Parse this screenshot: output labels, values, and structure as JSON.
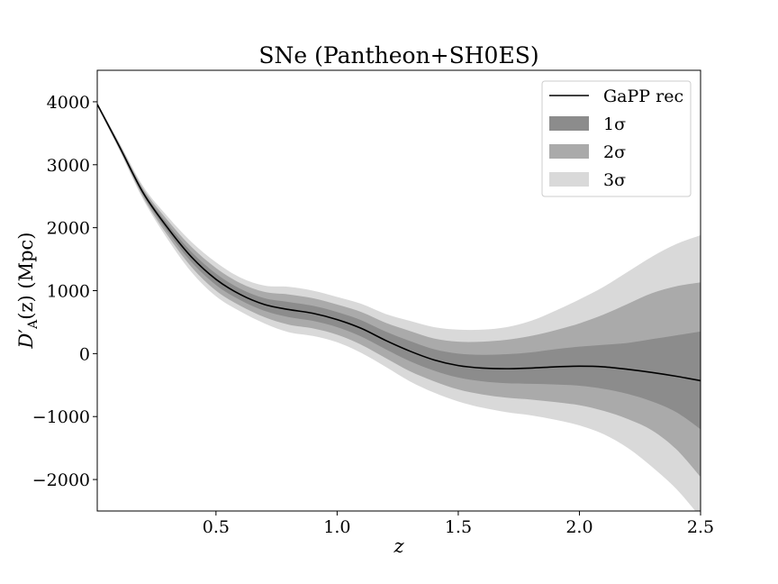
{
  "chart_data": {
    "type": "line",
    "title": "SNe (Pantheon+SH0ES)",
    "xlabel": "z",
    "ylabel": "D′A(z) (Mpc)",
    "ylabel_parts": {
      "base": "D",
      "prime": "′",
      "sub": "A",
      "rest": "(z) (Mpc)"
    },
    "xlim": [
      0.01,
      2.5
    ],
    "ylim": [
      -2500,
      4500
    ],
    "xticks": [
      0.5,
      1.0,
      1.5,
      2.0,
      2.5
    ],
    "xtick_labels": [
      "0.5",
      "1.0",
      "1.5",
      "2.0",
      "2.5"
    ],
    "yticks": [
      4000,
      3000,
      2000,
      1000,
      0,
      -1000,
      -2000
    ],
    "ytick_labels": [
      "4000",
      "3000",
      "2000",
      "1000",
      "0",
      "−1000",
      "−2000"
    ],
    "grid": false,
    "legend_position": "top-right",
    "x": [
      0.01,
      0.1,
      0.2,
      0.3,
      0.4,
      0.5,
      0.6,
      0.7,
      0.8,
      0.9,
      1.0,
      1.1,
      1.2,
      1.3,
      1.4,
      1.5,
      1.6,
      1.7,
      1.8,
      1.9,
      2.0,
      2.1,
      2.2,
      2.3,
      2.4,
      2.5
    ],
    "series": [
      {
        "name": "GaPP rec",
        "kind": "line",
        "color": "#000000",
        "values": [
          3960,
          3300,
          2550,
          2000,
          1530,
          1180,
          940,
          780,
          700,
          640,
          540,
          400,
          210,
          40,
          -100,
          -190,
          -230,
          -240,
          -230,
          -210,
          -200,
          -210,
          -250,
          -300,
          -360,
          -430
        ]
      },
      {
        "name": "1σ",
        "kind": "band",
        "color": "#8c8c8c",
        "lower": [
          3950,
          3280,
          2515,
          1940,
          1450,
          1090,
          850,
          680,
          580,
          520,
          420,
          270,
          70,
          -120,
          -270,
          -380,
          -440,
          -470,
          -480,
          -490,
          -510,
          -560,
          -640,
          -760,
          -930,
          -1200
        ],
        "upper": [
          3970,
          3320,
          2585,
          2060,
          1610,
          1270,
          1030,
          880,
          820,
          760,
          660,
          530,
          350,
          200,
          70,
          0,
          -20,
          -10,
          20,
          70,
          110,
          140,
          170,
          230,
          290,
          350
        ]
      },
      {
        "name": "2σ",
        "kind": "band",
        "color": "#aaaaaa",
        "lower": [
          3940,
          3260,
          2480,
          1880,
          1370,
          1000,
          760,
          580,
          460,
          400,
          300,
          140,
          -70,
          -280,
          -440,
          -570,
          -650,
          -700,
          -730,
          -770,
          -820,
          -910,
          -1040,
          -1220,
          -1520,
          -1960
        ],
        "upper": [
          3980,
          3340,
          2620,
          2120,
          1690,
          1360,
          1120,
          980,
          940,
          880,
          780,
          660,
          490,
          360,
          240,
          190,
          190,
          220,
          280,
          370,
          480,
          620,
          790,
          960,
          1070,
          1130
        ]
      },
      {
        "name": "3σ",
        "kind": "band",
        "color": "#d9d9d9",
        "lower": [
          3930,
          3240,
          2445,
          1820,
          1290,
          910,
          670,
          480,
          340,
          280,
          180,
          10,
          -210,
          -440,
          -620,
          -760,
          -860,
          -930,
          -980,
          -1050,
          -1140,
          -1280,
          -1500,
          -1800,
          -2150,
          -2600
        ],
        "upper": [
          3990,
          3360,
          2655,
          2180,
          1770,
          1450,
          1210,
          1080,
          1060,
          1000,
          900,
          790,
          630,
          520,
          420,
          380,
          380,
          420,
          520,
          680,
          860,
          1060,
          1300,
          1540,
          1740,
          1880
        ]
      }
    ]
  }
}
